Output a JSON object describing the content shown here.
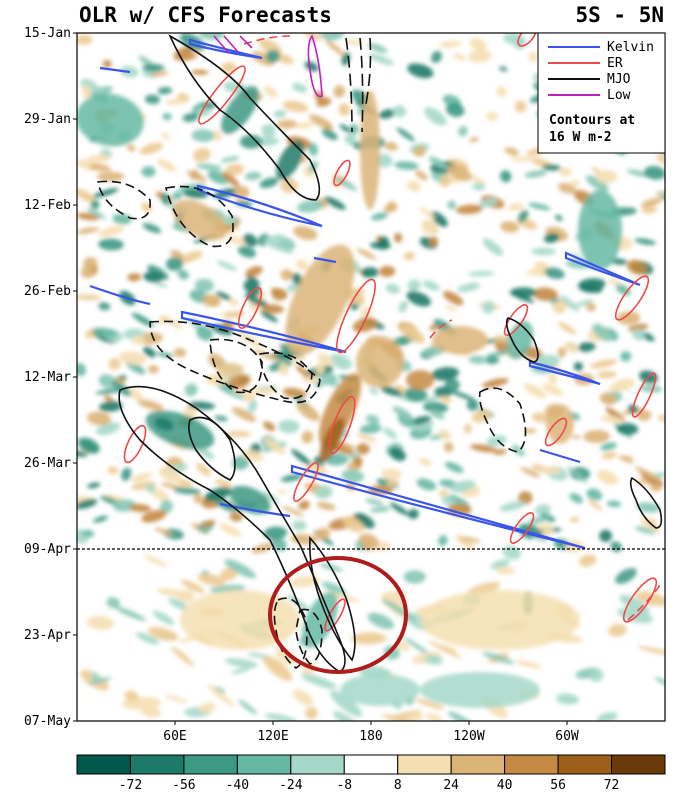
{
  "chart_data": {
    "type": "heatmap",
    "title": "OLR w/ CFS Forecasts",
    "subtitle": "5S - 5N",
    "y_ticks": [
      "15-Jan",
      "29-Jan",
      "12-Feb",
      "26-Feb",
      "12-Mar",
      "26-Mar",
      "09-Apr",
      "23-Apr",
      "07-May"
    ],
    "x_ticks": [
      "60E",
      "120E",
      "180",
      "120W",
      "60W"
    ],
    "x_tick_lon": [
      60,
      120,
      180,
      240,
      300
    ],
    "x_range_lon": [
      0,
      360
    ],
    "forecast_start": "09-Apr",
    "colorbar": {
      "ticks": [
        "-72",
        "-56",
        "-40",
        "-24",
        "-8",
        "8",
        "24",
        "40",
        "56",
        "72"
      ],
      "colors": [
        "#00594a",
        "#1e7a68",
        "#3d9884",
        "#66b8a4",
        "#a5d8c9",
        "#ffffff",
        "#f5dfb2",
        "#dcb478",
        "#c48a42",
        "#9d5f18",
        "#6b3a0a"
      ]
    },
    "legend": [
      {
        "label": "Kelvin",
        "color": "#3a55e8"
      },
      {
        "label": "ER",
        "color": "#ee4a4a"
      },
      {
        "label": "MJO",
        "color": "#111111"
      },
      {
        "label": "Low",
        "color": "#c020c0"
      }
    ],
    "legend_note": [
      "Contours at",
      "16 W m-2"
    ],
    "highlight": {
      "color": "#b01c1c"
    }
  }
}
